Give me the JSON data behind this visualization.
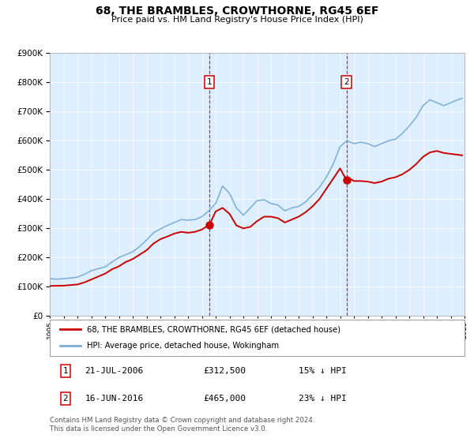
{
  "title": "68, THE BRAMBLES, CROWTHORNE, RG45 6EF",
  "subtitle": "Price paid vs. HM Land Registry's House Price Index (HPI)",
  "legend_line1": "68, THE BRAMBLES, CROWTHORNE, RG45 6EF (detached house)",
  "legend_line2": "HPI: Average price, detached house, Wokingham",
  "footnote1": "Contains HM Land Registry data © Crown copyright and database right 2024.",
  "footnote2": "This data is licensed under the Open Government Licence v3.0.",
  "annotation1_date": "21-JUL-2006",
  "annotation1_price": "£312,500",
  "annotation1_hpi": "15% ↓ HPI",
  "annotation2_date": "16-JUN-2016",
  "annotation2_price": "£465,000",
  "annotation2_hpi": "23% ↓ HPI",
  "sale1_x": 2006.55,
  "sale1_y": 312500,
  "sale2_x": 2016.46,
  "sale2_y": 465000,
  "vline1_x": 2006.55,
  "vline2_x": 2016.46,
  "ylim": [
    0,
    900000
  ],
  "xlim": [
    1995,
    2025
  ],
  "red_color": "#cc0000",
  "blue_color": "#7aaed6",
  "bg_color": "#ddeeff",
  "grid_color": "#c8d8e8",
  "hpi_data": [
    [
      1995.0,
      128000
    ],
    [
      1995.5,
      126000
    ],
    [
      1996.0,
      128000
    ],
    [
      1996.5,
      130000
    ],
    [
      1997.0,
      133000
    ],
    [
      1997.5,
      143000
    ],
    [
      1998.0,
      155000
    ],
    [
      1998.5,
      162000
    ],
    [
      1999.0,
      168000
    ],
    [
      1999.5,
      185000
    ],
    [
      2000.0,
      200000
    ],
    [
      2000.5,
      210000
    ],
    [
      2001.0,
      220000
    ],
    [
      2001.5,
      238000
    ],
    [
      2002.0,
      260000
    ],
    [
      2002.5,
      285000
    ],
    [
      2003.0,
      298000
    ],
    [
      2003.5,
      310000
    ],
    [
      2004.0,
      320000
    ],
    [
      2004.5,
      330000
    ],
    [
      2005.0,
      328000
    ],
    [
      2005.5,
      330000
    ],
    [
      2006.0,
      340000
    ],
    [
      2006.5,
      360000
    ],
    [
      2007.0,
      385000
    ],
    [
      2007.5,
      445000
    ],
    [
      2008.0,
      420000
    ],
    [
      2008.5,
      370000
    ],
    [
      2009.0,
      345000
    ],
    [
      2009.5,
      370000
    ],
    [
      2010.0,
      395000
    ],
    [
      2010.5,
      398000
    ],
    [
      2011.0,
      385000
    ],
    [
      2011.5,
      380000
    ],
    [
      2012.0,
      360000
    ],
    [
      2012.5,
      370000
    ],
    [
      2013.0,
      375000
    ],
    [
      2013.5,
      390000
    ],
    [
      2014.0,
      415000
    ],
    [
      2014.5,
      440000
    ],
    [
      2015.0,
      475000
    ],
    [
      2015.5,
      520000
    ],
    [
      2016.0,
      580000
    ],
    [
      2016.5,
      600000
    ],
    [
      2017.0,
      590000
    ],
    [
      2017.5,
      595000
    ],
    [
      2018.0,
      590000
    ],
    [
      2018.5,
      580000
    ],
    [
      2019.0,
      590000
    ],
    [
      2019.5,
      600000
    ],
    [
      2020.0,
      605000
    ],
    [
      2020.5,
      625000
    ],
    [
      2021.0,
      650000
    ],
    [
      2021.5,
      680000
    ],
    [
      2022.0,
      720000
    ],
    [
      2022.5,
      740000
    ],
    [
      2023.0,
      730000
    ],
    [
      2023.5,
      720000
    ],
    [
      2024.0,
      730000
    ],
    [
      2024.5,
      740000
    ],
    [
      2024.83,
      745000
    ]
  ],
  "price_data": [
    [
      1995.0,
      103000
    ],
    [
      1995.5,
      103500
    ],
    [
      1996.0,
      104000
    ],
    [
      1996.5,
      106000
    ],
    [
      1997.0,
      108000
    ],
    [
      1997.5,
      115000
    ],
    [
      1998.0,
      125000
    ],
    [
      1998.5,
      135000
    ],
    [
      1999.0,
      145000
    ],
    [
      1999.5,
      160000
    ],
    [
      2000.0,
      170000
    ],
    [
      2000.5,
      185000
    ],
    [
      2001.0,
      195000
    ],
    [
      2001.5,
      210000
    ],
    [
      2002.0,
      225000
    ],
    [
      2002.5,
      248000
    ],
    [
      2003.0,
      263000
    ],
    [
      2003.5,
      272000
    ],
    [
      2004.0,
      282000
    ],
    [
      2004.5,
      288000
    ],
    [
      2005.0,
      285000
    ],
    [
      2005.5,
      288000
    ],
    [
      2006.0,
      296000
    ],
    [
      2006.55,
      312500
    ],
    [
      2007.0,
      358000
    ],
    [
      2007.5,
      370000
    ],
    [
      2008.0,
      350000
    ],
    [
      2008.5,
      310000
    ],
    [
      2009.0,
      300000
    ],
    [
      2009.5,
      305000
    ],
    [
      2010.0,
      325000
    ],
    [
      2010.5,
      340000
    ],
    [
      2011.0,
      340000
    ],
    [
      2011.5,
      335000
    ],
    [
      2012.0,
      320000
    ],
    [
      2012.5,
      330000
    ],
    [
      2013.0,
      340000
    ],
    [
      2013.5,
      355000
    ],
    [
      2014.0,
      375000
    ],
    [
      2014.5,
      400000
    ],
    [
      2015.0,
      435000
    ],
    [
      2015.5,
      470000
    ],
    [
      2016.0,
      505000
    ],
    [
      2016.46,
      465000
    ],
    [
      2016.8,
      468000
    ],
    [
      2017.0,
      462000
    ],
    [
      2017.5,
      462000
    ],
    [
      2018.0,
      460000
    ],
    [
      2018.5,
      455000
    ],
    [
      2019.0,
      460000
    ],
    [
      2019.5,
      470000
    ],
    [
      2020.0,
      475000
    ],
    [
      2020.5,
      485000
    ],
    [
      2021.0,
      500000
    ],
    [
      2021.5,
      520000
    ],
    [
      2022.0,
      545000
    ],
    [
      2022.5,
      560000
    ],
    [
      2023.0,
      565000
    ],
    [
      2023.5,
      558000
    ],
    [
      2024.0,
      555000
    ],
    [
      2024.5,
      552000
    ],
    [
      2024.83,
      550000
    ]
  ]
}
